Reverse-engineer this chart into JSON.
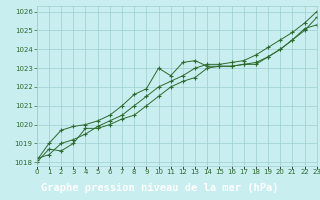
{
  "title": "Graphe pression niveau de la mer (hPa)",
  "x_labels": [
    "0",
    "1",
    "2",
    "3",
    "4",
    "5",
    "6",
    "7",
    "8",
    "9",
    "10",
    "11",
    "12",
    "13",
    "14",
    "15",
    "16",
    "17",
    "18",
    "19",
    "20",
    "21",
    "22",
    "23"
  ],
  "series1": [
    1018.0,
    1018.7,
    1018.6,
    1019.0,
    1019.8,
    1019.8,
    1020.0,
    1020.3,
    1020.5,
    1021.0,
    1021.5,
    1022.0,
    1022.3,
    1022.5,
    1023.0,
    1023.1,
    1023.1,
    1023.2,
    1023.3,
    1023.6,
    1024.0,
    1024.5,
    1025.1,
    1025.3
  ],
  "series2": [
    1018.1,
    1019.0,
    1019.7,
    1019.9,
    1020.0,
    1020.2,
    1020.5,
    1021.0,
    1021.6,
    1021.9,
    1023.0,
    1022.6,
    1023.3,
    1023.4,
    1023.1,
    1023.1,
    1023.1,
    1023.2,
    1023.2,
    1023.6,
    1024.0,
    1024.5,
    1025.0,
    1025.7
  ],
  "series3": [
    1018.2,
    1018.4,
    1019.0,
    1019.2,
    1019.5,
    1019.9,
    1020.2,
    1020.5,
    1021.0,
    1021.5,
    1022.0,
    1022.3,
    1022.6,
    1023.0,
    1023.2,
    1023.2,
    1023.3,
    1023.4,
    1023.7,
    1024.1,
    1024.5,
    1024.9,
    1025.4,
    1026.0
  ],
  "xlim": [
    0,
    23
  ],
  "ylim": [
    1017.8,
    1026.3
  ],
  "yticks": [
    1018,
    1019,
    1020,
    1021,
    1022,
    1023,
    1024,
    1025,
    1026
  ],
  "line_color": "#2d6a2d",
  "bg_color": "#c8eef0",
  "grid_color": "#9ecece",
  "title_bg": "#2d6a2d",
  "title_color": "#ffffff",
  "title_fontsize": 7.5,
  "axis_label_color": "#2d6a2d",
  "tick_fontsize": 5.0
}
